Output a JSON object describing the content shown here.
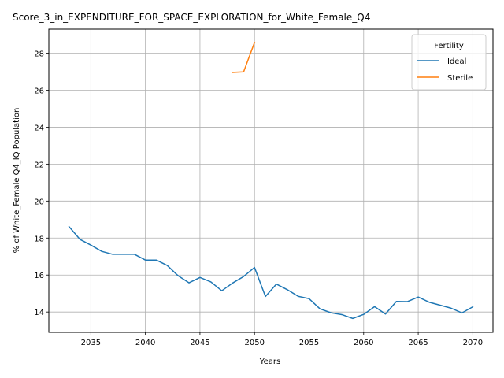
{
  "chart_data": {
    "type": "line",
    "title": "Score_3_in_EXPENDITURE_FOR_SPACE_EXPLORATION_for_White_Female_Q4",
    "xlabel": "Years",
    "ylabel": "% of White_Female Q4_IQ Population",
    "xlim": [
      2031.15,
      2071.85
    ],
    "ylim": [
      12.9,
      29.3
    ],
    "xticks": [
      2035,
      2040,
      2045,
      2050,
      2055,
      2060,
      2065,
      2070
    ],
    "yticks": [
      14,
      16,
      18,
      20,
      22,
      24,
      26,
      28
    ],
    "grid": true,
    "legend": {
      "title": "Fertility",
      "position": "top-right"
    },
    "series": [
      {
        "name": "Ideal",
        "color": "#1f77b4",
        "x": [
          2033,
          2034,
          2035,
          2036,
          2037,
          2038,
          2039,
          2040,
          2041,
          2042,
          2043,
          2044,
          2045,
          2046,
          2047,
          2048,
          2049,
          2050,
          2051,
          2052,
          2053,
          2054,
          2055,
          2056,
          2057,
          2058,
          2059,
          2060,
          2061,
          2062,
          2063,
          2064,
          2065,
          2066,
          2067,
          2068,
          2069,
          2070
        ],
        "y": [
          18.62,
          17.93,
          17.62,
          17.28,
          17.12,
          17.12,
          17.12,
          16.81,
          16.81,
          16.52,
          15.96,
          15.58,
          15.87,
          15.63,
          15.15,
          15.57,
          15.92,
          16.41,
          14.84,
          15.51,
          15.21,
          14.85,
          14.72,
          14.17,
          13.96,
          13.86,
          13.65,
          13.87,
          14.29,
          13.89,
          14.57,
          14.56,
          14.81,
          14.53,
          14.37,
          14.21,
          13.95,
          14.28
        ]
      },
      {
        "name": "Sterile",
        "color": "#ff7f0e",
        "x": [
          2048,
          2049,
          2050
        ],
        "y": [
          26.96,
          26.99,
          28.58
        ]
      }
    ]
  }
}
